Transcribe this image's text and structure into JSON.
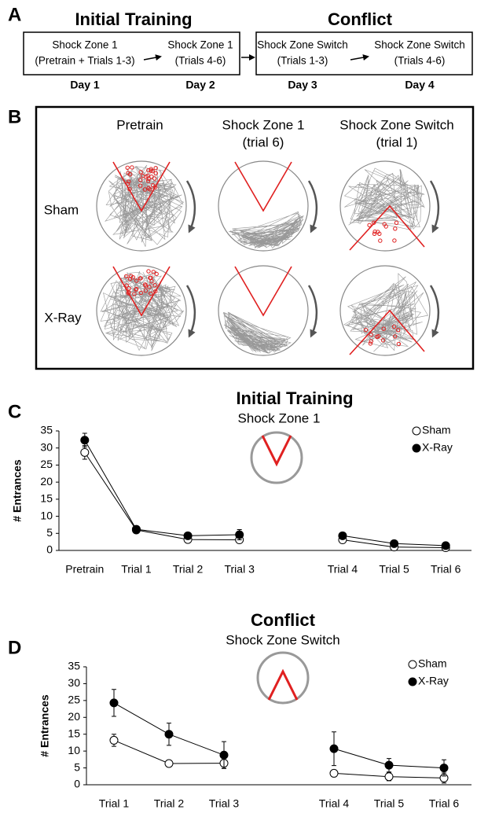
{
  "panel_a": {
    "label": "A",
    "titles": [
      "Initial Training",
      "Conflict"
    ],
    "stages": [
      {
        "line1": "Shock Zone 1",
        "line2": "(Pretrain + Trials 1-3)",
        "day": "Day 1"
      },
      {
        "line1": "Shock Zone 1",
        "line2": "(Trials 4-6)",
        "day": "Day 2"
      },
      {
        "line1": "Shock Zone Switch",
        "line2": "(Trials 1-3)",
        "day": "Day 3"
      },
      {
        "line1": "Shock Zone Switch",
        "line2": "(Trials 4-6)",
        "day": "Day 4"
      }
    ]
  },
  "panel_b": {
    "label": "B",
    "columns": [
      {
        "title": "Pretrain"
      },
      {
        "title": "Shock Zone 1",
        "subtitle": "(trial 6)"
      },
      {
        "title": "Shock Zone Switch",
        "subtitle": "(trial 1)"
      }
    ],
    "rows": [
      "Sham",
      "X-Ray"
    ]
  },
  "chart_data": [
    {
      "type": "line",
      "panel_label": "C",
      "title": "Initial Training",
      "subtitle": "Shock Zone 1",
      "y_label": "# Entrances",
      "categories": [
        "Pretrain",
        "Trial 1",
        "Trial 2",
        "Trial 3",
        null,
        "Trial 4",
        "Trial 5",
        "Trial 6"
      ],
      "series": [
        {
          "name": "Sham",
          "color": "#000000",
          "marker": "open",
          "values": [
            28.7,
            6,
            3.2,
            3.1,
            null,
            3.1,
            1,
            0.8
          ],
          "errors": [
            2,
            0.5,
            0.4,
            0.4,
            null,
            0.5,
            0.3,
            0.2
          ]
        },
        {
          "name": "X-Ray",
          "color": "#000000",
          "marker": "filled",
          "values": [
            32.3,
            6.2,
            4.3,
            4.6,
            null,
            4.3,
            2,
            1.4
          ],
          "errors": [
            2,
            0.5,
            0.6,
            1.5,
            null,
            0.6,
            0.4,
            0.4
          ]
        }
      ],
      "ylim": [
        0,
        35
      ],
      "yticks": [
        0,
        5,
        10,
        15,
        20,
        25,
        30,
        35
      ],
      "legend": "upper right"
    },
    {
      "type": "line",
      "panel_label": "D",
      "title": "Conflict",
      "subtitle": "Shock Zone Switch",
      "y_label": "# Entrances",
      "categories": [
        "Trial 1",
        "Trial 2",
        "Trial 3",
        null,
        "Trial 4",
        "Trial 5",
        "Trial 6"
      ],
      "series": [
        {
          "name": "Sham",
          "color": "#000000",
          "marker": "open",
          "values": [
            13.2,
            6.3,
            6.4,
            null,
            3.4,
            2.4,
            2
          ],
          "errors": [
            1.8,
            0.8,
            1.5,
            null,
            0.5,
            1.2,
            1.5
          ]
        },
        {
          "name": "X-Ray",
          "color": "#000000",
          "marker": "filled",
          "values": [
            24.3,
            15,
            8.8,
            null,
            10.7,
            5.8,
            5
          ],
          "errors": [
            4,
            3.3,
            4,
            null,
            5,
            2,
            2.4
          ]
        }
      ],
      "ylim": [
        0,
        35
      ],
      "yticks": [
        0,
        5,
        10,
        15,
        20,
        25,
        30,
        35
      ],
      "legend": "upper right"
    }
  ]
}
